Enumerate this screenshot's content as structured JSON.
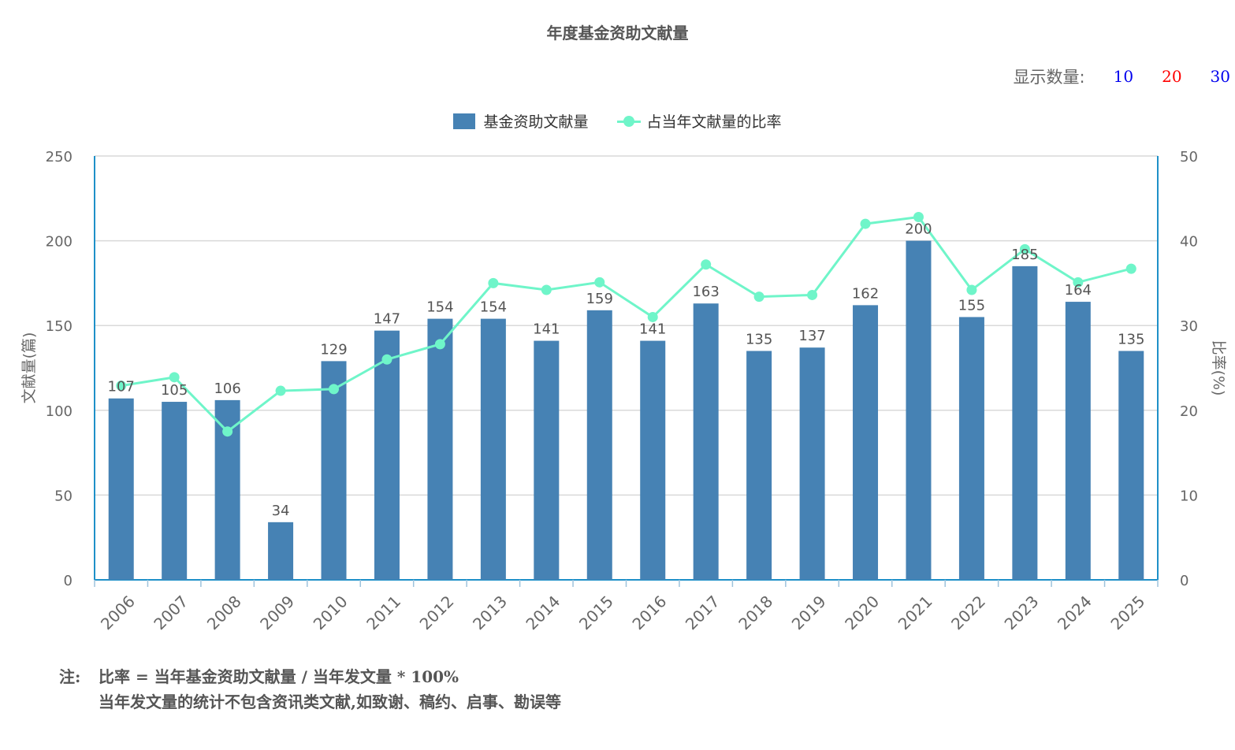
{
  "title": "年度基金资助文献量",
  "count_control": {
    "label": "显示数量:",
    "options": [
      {
        "label": "10",
        "color": "#0000EE"
      },
      {
        "label": "20",
        "color": "#FF0000"
      },
      {
        "label": "30",
        "color": "#0000EE"
      }
    ]
  },
  "legend": {
    "bar_label": "基金资助文献量",
    "line_label": "占当年文献量的比率"
  },
  "notes": {
    "prefix": "注:",
    "line1": "比率 = 当年基金资助文献量 / 当年发文量 * 100%",
    "line2": "当年发文量的统计不包含资讯类文献,如致谢、稿约、启事、勘误等"
  },
  "chart_data": {
    "type": "bar",
    "categories": [
      "2006",
      "2007",
      "2008",
      "2009",
      "2010",
      "2011",
      "2012",
      "2013",
      "2014",
      "2015",
      "2016",
      "2017",
      "2018",
      "2019",
      "2020",
      "2021",
      "2022",
      "2023",
      "2024",
      "2025"
    ],
    "ylabel": "文献量(篇)",
    "y2label": "比率(%)",
    "ylim": [
      0,
      250
    ],
    "y2lim": [
      0,
      50
    ],
    "yticks": [
      0,
      50,
      100,
      150,
      200,
      250
    ],
    "y2ticks": [
      0,
      10,
      20,
      30,
      40,
      50
    ],
    "grid": true,
    "legend_position": "top-center",
    "bar_color": "#4682B4",
    "line_color": "#6FF5C9",
    "axis_color": "#1E90C8",
    "series": [
      {
        "name": "基金资助文献量",
        "type": "bar",
        "axis": "left",
        "values": [
          107,
          105,
          106,
          34,
          129,
          147,
          154,
          154,
          141,
          159,
          141,
          163,
          135,
          137,
          162,
          200,
          155,
          185,
          164,
          135
        ]
      },
      {
        "name": "占当年文献量的比率",
        "type": "line",
        "axis": "right",
        "values": [
          22.9,
          23.9,
          17.5,
          22.3,
          22.5,
          26.0,
          27.8,
          35.0,
          34.2,
          35.1,
          31.0,
          37.2,
          33.4,
          33.6,
          42.0,
          42.8,
          34.2,
          39.0,
          35.1,
          36.7
        ]
      }
    ]
  }
}
